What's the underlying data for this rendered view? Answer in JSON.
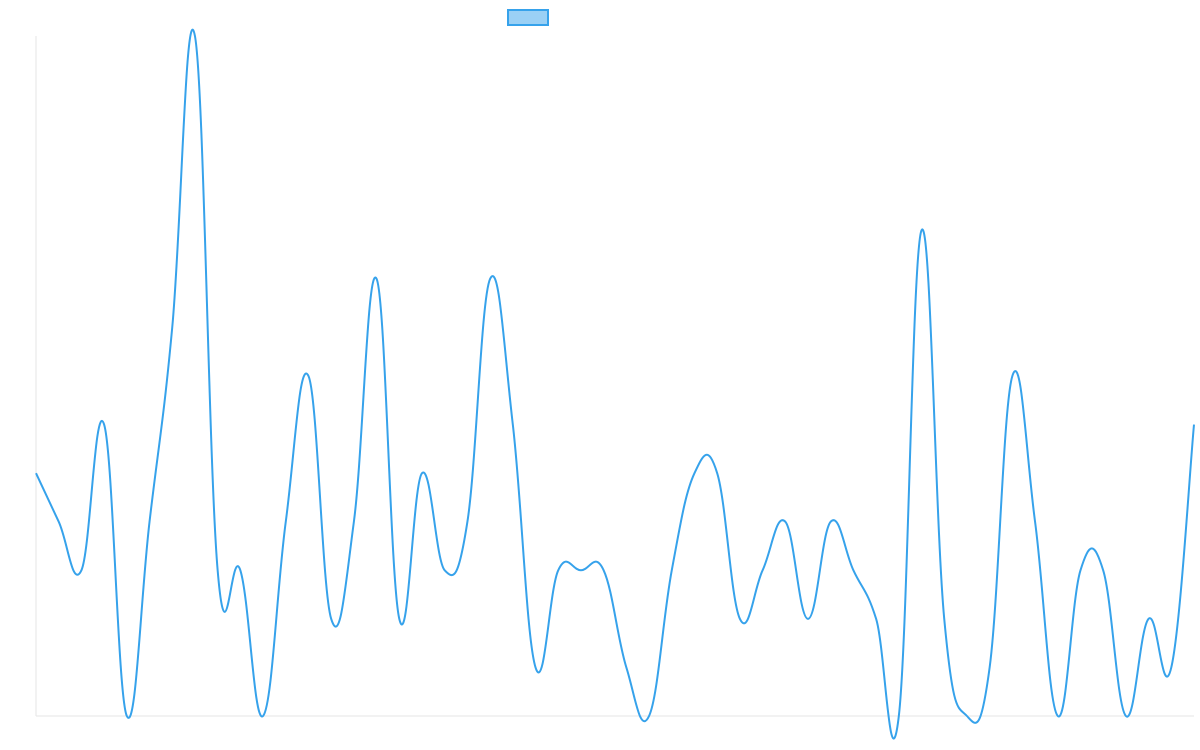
{
  "chart_data": {
    "type": "line",
    "categories": [
      null,
      null,
      null,
      null,
      null,
      null,
      null,
      null,
      null,
      null,
      null,
      null,
      null,
      null,
      null,
      null,
      null,
      null,
      null,
      null,
      null,
      null,
      null,
      null,
      null,
      null,
      null,
      null,
      null,
      null,
      null,
      null,
      null,
      null,
      null,
      null,
      null,
      null,
      null,
      null,
      null,
      null,
      null,
      null,
      null,
      null,
      null,
      null,
      null,
      null,
      null,
      null
    ],
    "series": [
      {
        "color": "#36a2eb",
        "legend_fill": "#9ad0f5",
        "values": [
          5,
          4,
          3,
          6,
          0,
          4,
          8,
          14,
          3,
          3,
          0,
          4,
          7,
          2,
          4,
          9,
          2,
          5,
          3,
          4,
          9,
          6,
          1,
          3,
          3,
          3,
          1,
          0,
          3,
          5,
          5,
          2,
          3,
          4,
          2,
          4,
          3,
          2,
          0,
          10,
          2,
          0,
          1,
          7,
          4,
          0,
          3,
          3,
          0,
          2,
          1,
          6
        ]
      }
    ],
    "ylim": [
      0,
      14
    ]
  }
}
